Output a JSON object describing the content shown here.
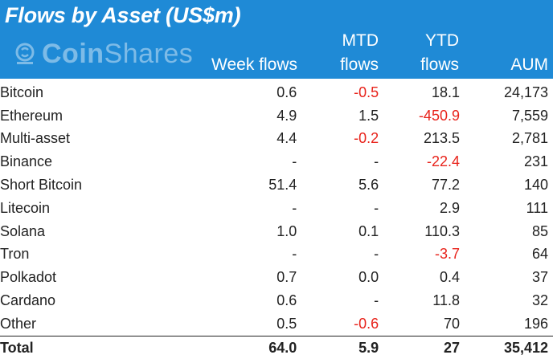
{
  "title": "Flows by Asset (US$m)",
  "logo": {
    "text_bold": "Coin",
    "text_light": "Shares",
    "icon": "coinshares-logo-icon"
  },
  "colors": {
    "header_bg": "#1f8ad6",
    "negative": "#e8231b",
    "text": "#222222"
  },
  "chart_data": {
    "type": "table",
    "title": "Flows by Asset (US$m)",
    "columns": [
      {
        "line1": "",
        "line2": "Week flows"
      },
      {
        "line1": "MTD",
        "line2": "flows"
      },
      {
        "line1": "YTD",
        "line2": "flows"
      },
      {
        "line1": "",
        "line2": "AUM"
      }
    ],
    "rows": [
      {
        "asset": "Bitcoin",
        "values": [
          "0.6",
          "-0.5",
          "18.1",
          "24,173"
        ]
      },
      {
        "asset": "Ethereum",
        "values": [
          "4.9",
          "1.5",
          "-450.9",
          "7,559"
        ]
      },
      {
        "asset": "Multi-asset",
        "values": [
          "4.4",
          "-0.2",
          "213.5",
          "2,781"
        ]
      },
      {
        "asset": "Binance",
        "values": [
          "-",
          "-",
          "-22.4",
          "231"
        ]
      },
      {
        "asset": "Short Bitcoin",
        "values": [
          "51.4",
          "5.6",
          "77.2",
          "140"
        ]
      },
      {
        "asset": "Litecoin",
        "values": [
          "-",
          "-",
          "2.9",
          "111"
        ]
      },
      {
        "asset": "Solana",
        "values": [
          "1.0",
          "0.1",
          "110.3",
          "85"
        ]
      },
      {
        "asset": "Tron",
        "values": [
          "-",
          "-",
          "-3.7",
          "64"
        ]
      },
      {
        "asset": "Polkadot",
        "values": [
          "0.7",
          "0.0",
          "0.4",
          "37"
        ]
      },
      {
        "asset": "Cardano",
        "values": [
          "0.6",
          "-",
          "11.8",
          "32"
        ]
      },
      {
        "asset": "Other",
        "values": [
          "0.5",
          "-0.6",
          "70",
          "196"
        ]
      }
    ],
    "total": {
      "asset": "Total",
      "values": [
        "64.0",
        "5.9",
        "27",
        "35,412"
      ]
    }
  }
}
